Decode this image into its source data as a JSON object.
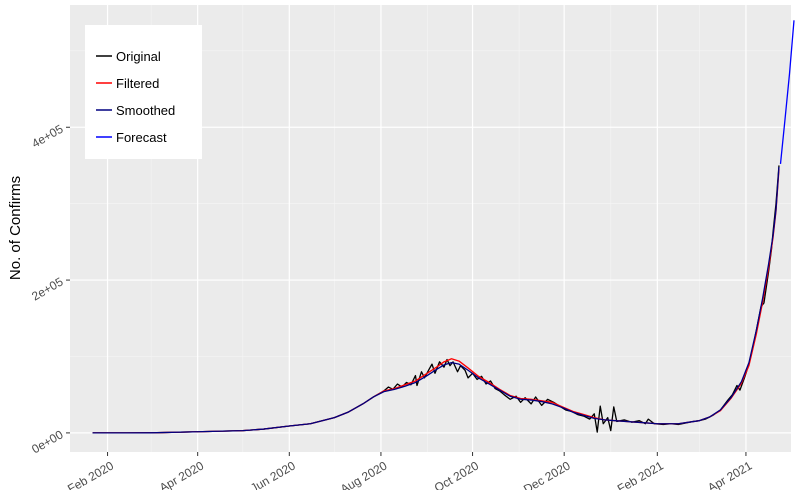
{
  "chart_data": {
    "type": "line",
    "title": "",
    "xlabel": "",
    "ylabel": "No. of Confirms",
    "x_ticks": [
      "Feb 2020",
      "Apr 2020",
      "Jun 2020",
      "Aug 2020",
      "Oct 2020",
      "Dec 2020",
      "Feb 2021",
      "Apr 2021"
    ],
    "x_range": [
      "2020-01-07",
      "2021-05-01"
    ],
    "y_ticks": [
      0,
      200000,
      400000
    ],
    "y_tick_labels": [
      "0e+00",
      "2e+05",
      "4e+05"
    ],
    "ylim": [
      -25000,
      560000
    ],
    "grid": true,
    "legend_position": "top-left",
    "series": [
      {
        "name": "Original",
        "color": "#000000",
        "points": [
          [
            "2020-01-22",
            0
          ],
          [
            "2020-03-01",
            100
          ],
          [
            "2020-04-01",
            1500
          ],
          [
            "2020-05-01",
            3000
          ],
          [
            "2020-05-15",
            5000
          ],
          [
            "2020-06-01",
            9000
          ],
          [
            "2020-06-15",
            12000
          ],
          [
            "2020-07-01",
            20000
          ],
          [
            "2020-07-10",
            27000
          ],
          [
            "2020-07-20",
            38000
          ],
          [
            "2020-07-27",
            47000
          ],
          [
            "2020-08-03",
            55000
          ],
          [
            "2020-08-06",
            60000
          ],
          [
            "2020-08-09",
            57000
          ],
          [
            "2020-08-12",
            64000
          ],
          [
            "2020-08-15",
            60000
          ],
          [
            "2020-08-18",
            66000
          ],
          [
            "2020-08-21",
            63000
          ],
          [
            "2020-08-24",
            75000
          ],
          [
            "2020-08-25",
            62000
          ],
          [
            "2020-08-28",
            80000
          ],
          [
            "2020-08-30",
            72000
          ],
          [
            "2020-09-02",
            83000
          ],
          [
            "2020-09-04",
            90000
          ],
          [
            "2020-09-06",
            78000
          ],
          [
            "2020-09-09",
            93000
          ],
          [
            "2020-09-12",
            86000
          ],
          [
            "2020-09-14",
            96000
          ],
          [
            "2020-09-16",
            88000
          ],
          [
            "2020-09-18",
            93000
          ],
          [
            "2020-09-21",
            80000
          ],
          [
            "2020-09-23",
            88000
          ],
          [
            "2020-09-26",
            82000
          ],
          [
            "2020-09-28",
            72000
          ],
          [
            "2020-10-01",
            78000
          ],
          [
            "2020-10-04",
            70000
          ],
          [
            "2020-10-07",
            74000
          ],
          [
            "2020-10-10",
            64000
          ],
          [
            "2020-10-13",
            68000
          ],
          [
            "2020-10-16",
            58000
          ],
          [
            "2020-10-19",
            55000
          ],
          [
            "2020-10-22",
            50000
          ],
          [
            "2020-10-26",
            44000
          ],
          [
            "2020-10-30",
            48000
          ],
          [
            "2020-11-02",
            40000
          ],
          [
            "2020-11-05",
            46000
          ],
          [
            "2020-11-09",
            38000
          ],
          [
            "2020-11-12",
            47000
          ],
          [
            "2020-11-16",
            36000
          ],
          [
            "2020-11-20",
            44000
          ],
          [
            "2020-11-24",
            40000
          ],
          [
            "2020-11-28",
            35000
          ],
          [
            "2020-12-02",
            30000
          ],
          [
            "2020-12-06",
            28000
          ],
          [
            "2020-12-10",
            24000
          ],
          [
            "2020-12-14",
            22000
          ],
          [
            "2020-12-18",
            18000
          ],
          [
            "2020-12-21",
            25000
          ],
          [
            "2020-12-23",
            1000
          ],
          [
            "2020-12-25",
            35000
          ],
          [
            "2020-12-27",
            12000
          ],
          [
            "2020-12-30",
            20000
          ],
          [
            "2021-01-01",
            3000
          ],
          [
            "2021-01-03",
            34000
          ],
          [
            "2021-01-05",
            15000
          ],
          [
            "2021-01-10",
            17000
          ],
          [
            "2021-01-15",
            14000
          ],
          [
            "2021-01-20",
            16000
          ],
          [
            "2021-01-24",
            12000
          ],
          [
            "2021-01-26",
            18000
          ],
          [
            "2021-01-30",
            12000
          ],
          [
            "2021-02-05",
            11000
          ],
          [
            "2021-02-10",
            12000
          ],
          [
            "2021-02-15",
            11000
          ],
          [
            "2021-02-20",
            13000
          ],
          [
            "2021-02-25",
            15000
          ],
          [
            "2021-03-01",
            16000
          ],
          [
            "2021-03-05",
            18000
          ],
          [
            "2021-03-10",
            23000
          ],
          [
            "2021-03-15",
            30000
          ],
          [
            "2021-03-20",
            43000
          ],
          [
            "2021-03-23",
            50000
          ],
          [
            "2021-03-26",
            62000
          ],
          [
            "2021-03-28",
            56000
          ],
          [
            "2021-03-31",
            72000
          ],
          [
            "2021-04-03",
            90000
          ],
          [
            "2021-04-06",
            115000
          ],
          [
            "2021-04-09",
            145000
          ],
          [
            "2021-04-11",
            165000
          ],
          [
            "2021-04-13",
            170000
          ],
          [
            "2021-04-16",
            210000
          ],
          [
            "2021-04-18",
            240000
          ],
          [
            "2021-04-19",
            262000
          ],
          [
            "2021-04-21",
            300000
          ],
          [
            "2021-04-23",
            350000
          ]
        ]
      },
      {
        "name": "Filtered",
        "color": "#ff0000",
        "points": [
          [
            "2020-01-22",
            0
          ],
          [
            "2020-03-01",
            100
          ],
          [
            "2020-04-01",
            1500
          ],
          [
            "2020-05-01",
            3000
          ],
          [
            "2020-05-15",
            5000
          ],
          [
            "2020-06-01",
            9000
          ],
          [
            "2020-06-15",
            12000
          ],
          [
            "2020-07-01",
            20000
          ],
          [
            "2020-07-10",
            27000
          ],
          [
            "2020-07-20",
            38000
          ],
          [
            "2020-07-27",
            47000
          ],
          [
            "2020-08-03",
            55000
          ],
          [
            "2020-08-10",
            58000
          ],
          [
            "2020-08-17",
            63000
          ],
          [
            "2020-08-24",
            68000
          ],
          [
            "2020-08-31",
            77000
          ],
          [
            "2020-09-07",
            86000
          ],
          [
            "2020-09-12",
            93000
          ],
          [
            "2020-09-17",
            97000
          ],
          [
            "2020-09-22",
            94000
          ],
          [
            "2020-09-28",
            85000
          ],
          [
            "2020-10-05",
            74000
          ],
          [
            "2020-10-12",
            66000
          ],
          [
            "2020-10-19",
            57000
          ],
          [
            "2020-10-26",
            49000
          ],
          [
            "2020-11-02",
            45000
          ],
          [
            "2020-11-09",
            44000
          ],
          [
            "2020-11-16",
            42000
          ],
          [
            "2020-11-23",
            40000
          ],
          [
            "2020-11-30",
            34000
          ],
          [
            "2020-12-07",
            28000
          ],
          [
            "2020-12-14",
            24000
          ],
          [
            "2020-12-21",
            20000
          ],
          [
            "2020-12-28",
            17000
          ],
          [
            "2021-01-04",
            16000
          ],
          [
            "2021-01-11",
            15000
          ],
          [
            "2021-01-18",
            14000
          ],
          [
            "2021-01-25",
            13000
          ],
          [
            "2021-02-01",
            12000
          ],
          [
            "2021-02-08",
            12000
          ],
          [
            "2021-02-15",
            12000
          ],
          [
            "2021-02-22",
            14000
          ],
          [
            "2021-03-01",
            16000
          ],
          [
            "2021-03-08",
            21000
          ],
          [
            "2021-03-15",
            29000
          ],
          [
            "2021-03-22",
            45000
          ],
          [
            "2021-03-29",
            65000
          ],
          [
            "2021-04-03",
            88000
          ],
          [
            "2021-04-08",
            130000
          ],
          [
            "2021-04-12",
            170000
          ],
          [
            "2021-04-16",
            215000
          ],
          [
            "2021-04-19",
            255000
          ],
          [
            "2021-04-21",
            290000
          ],
          [
            "2021-04-23",
            345000
          ]
        ]
      },
      {
        "name": "Smoothed",
        "color": "#000080",
        "points": [
          [
            "2020-01-22",
            0
          ],
          [
            "2020-03-01",
            100
          ],
          [
            "2020-04-01",
            1500
          ],
          [
            "2020-05-01",
            3000
          ],
          [
            "2020-05-15",
            5000
          ],
          [
            "2020-06-01",
            9000
          ],
          [
            "2020-06-15",
            12000
          ],
          [
            "2020-07-01",
            20000
          ],
          [
            "2020-07-10",
            27000
          ],
          [
            "2020-07-20",
            38000
          ],
          [
            "2020-07-27",
            47000
          ],
          [
            "2020-08-03",
            54000
          ],
          [
            "2020-08-10",
            57000
          ],
          [
            "2020-08-17",
            61000
          ],
          [
            "2020-08-24",
            66000
          ],
          [
            "2020-08-31",
            74000
          ],
          [
            "2020-09-07",
            83000
          ],
          [
            "2020-09-12",
            89000
          ],
          [
            "2020-09-17",
            92000
          ],
          [
            "2020-09-22",
            90000
          ],
          [
            "2020-09-28",
            82000
          ],
          [
            "2020-10-05",
            72000
          ],
          [
            "2020-10-12",
            64000
          ],
          [
            "2020-10-19",
            56000
          ],
          [
            "2020-10-26",
            48000
          ],
          [
            "2020-11-02",
            44000
          ],
          [
            "2020-11-09",
            43000
          ],
          [
            "2020-11-16",
            41000
          ],
          [
            "2020-11-23",
            38000
          ],
          [
            "2020-11-30",
            33000
          ],
          [
            "2020-12-07",
            27000
          ],
          [
            "2020-12-14",
            23000
          ],
          [
            "2020-12-21",
            19000
          ],
          [
            "2020-12-28",
            17000
          ],
          [
            "2021-01-04",
            16000
          ],
          [
            "2021-01-11",
            15000
          ],
          [
            "2021-01-18",
            14000
          ],
          [
            "2021-01-25",
            13000
          ],
          [
            "2021-02-01",
            12000
          ],
          [
            "2021-02-08",
            12000
          ],
          [
            "2021-02-15",
            12000
          ],
          [
            "2021-02-22",
            14000
          ],
          [
            "2021-03-01",
            16000
          ],
          [
            "2021-03-08",
            21000
          ],
          [
            "2021-03-15",
            30000
          ],
          [
            "2021-03-22",
            46000
          ],
          [
            "2021-03-29",
            67000
          ],
          [
            "2021-04-03",
            92000
          ],
          [
            "2021-04-08",
            135000
          ],
          [
            "2021-04-12",
            175000
          ],
          [
            "2021-04-16",
            220000
          ],
          [
            "2021-04-19",
            258000
          ],
          [
            "2021-04-21",
            292000
          ],
          [
            "2021-04-23",
            348000
          ]
        ]
      },
      {
        "name": "Forecast",
        "color": "#0000ff",
        "points": [
          [
            "2021-04-24",
            352000
          ],
          [
            "2021-04-27",
            410000
          ],
          [
            "2021-04-30",
            470000
          ],
          [
            "2021-05-03",
            540000
          ]
        ]
      }
    ]
  }
}
